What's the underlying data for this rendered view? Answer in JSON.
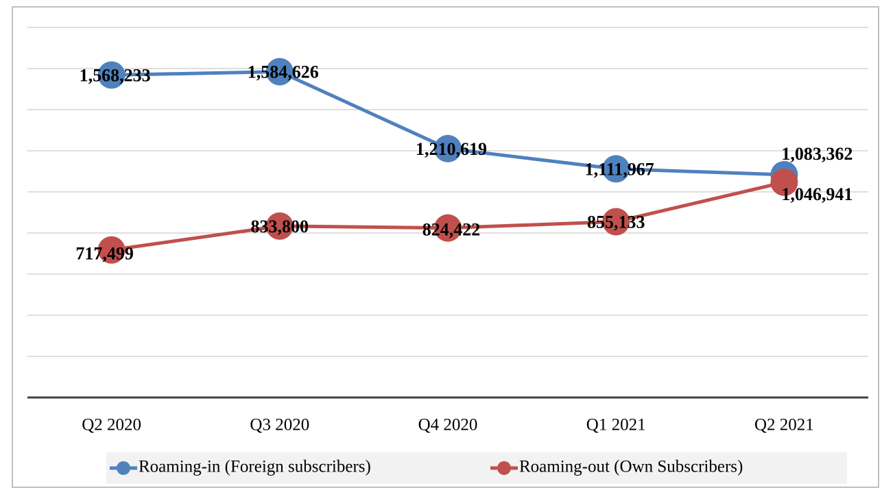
{
  "chart_data": {
    "type": "line",
    "categories": [
      "Q2 2020",
      "Q3 2020",
      "Q4 2020",
      "Q1 2021",
      "Q2 2021"
    ],
    "series": [
      {
        "name": "Roaming-in (Foreign subscribers)",
        "color": "#4f81bd",
        "values": [
          1568233,
          1584626,
          1210619,
          1111967,
          1083362
        ],
        "value_labels": [
          "1,568,233",
          "1,584,626",
          "1,210,619",
          "1,111,967",
          "1,083,362"
        ]
      },
      {
        "name": "Roaming-out (Own Subscribers)",
        "color": "#c0504d",
        "values": [
          717499,
          833800,
          824422,
          855133,
          1046941
        ],
        "value_labels": [
          "717,499",
          "833,800",
          "824,422",
          "855,133",
          "1,046,941"
        ]
      }
    ],
    "ylim": [
      0,
      1800000
    ],
    "yticks": [
      0,
      200000,
      400000,
      600000,
      800000,
      1000000,
      1200000,
      1400000,
      1600000,
      1800000
    ],
    "grid": true
  }
}
